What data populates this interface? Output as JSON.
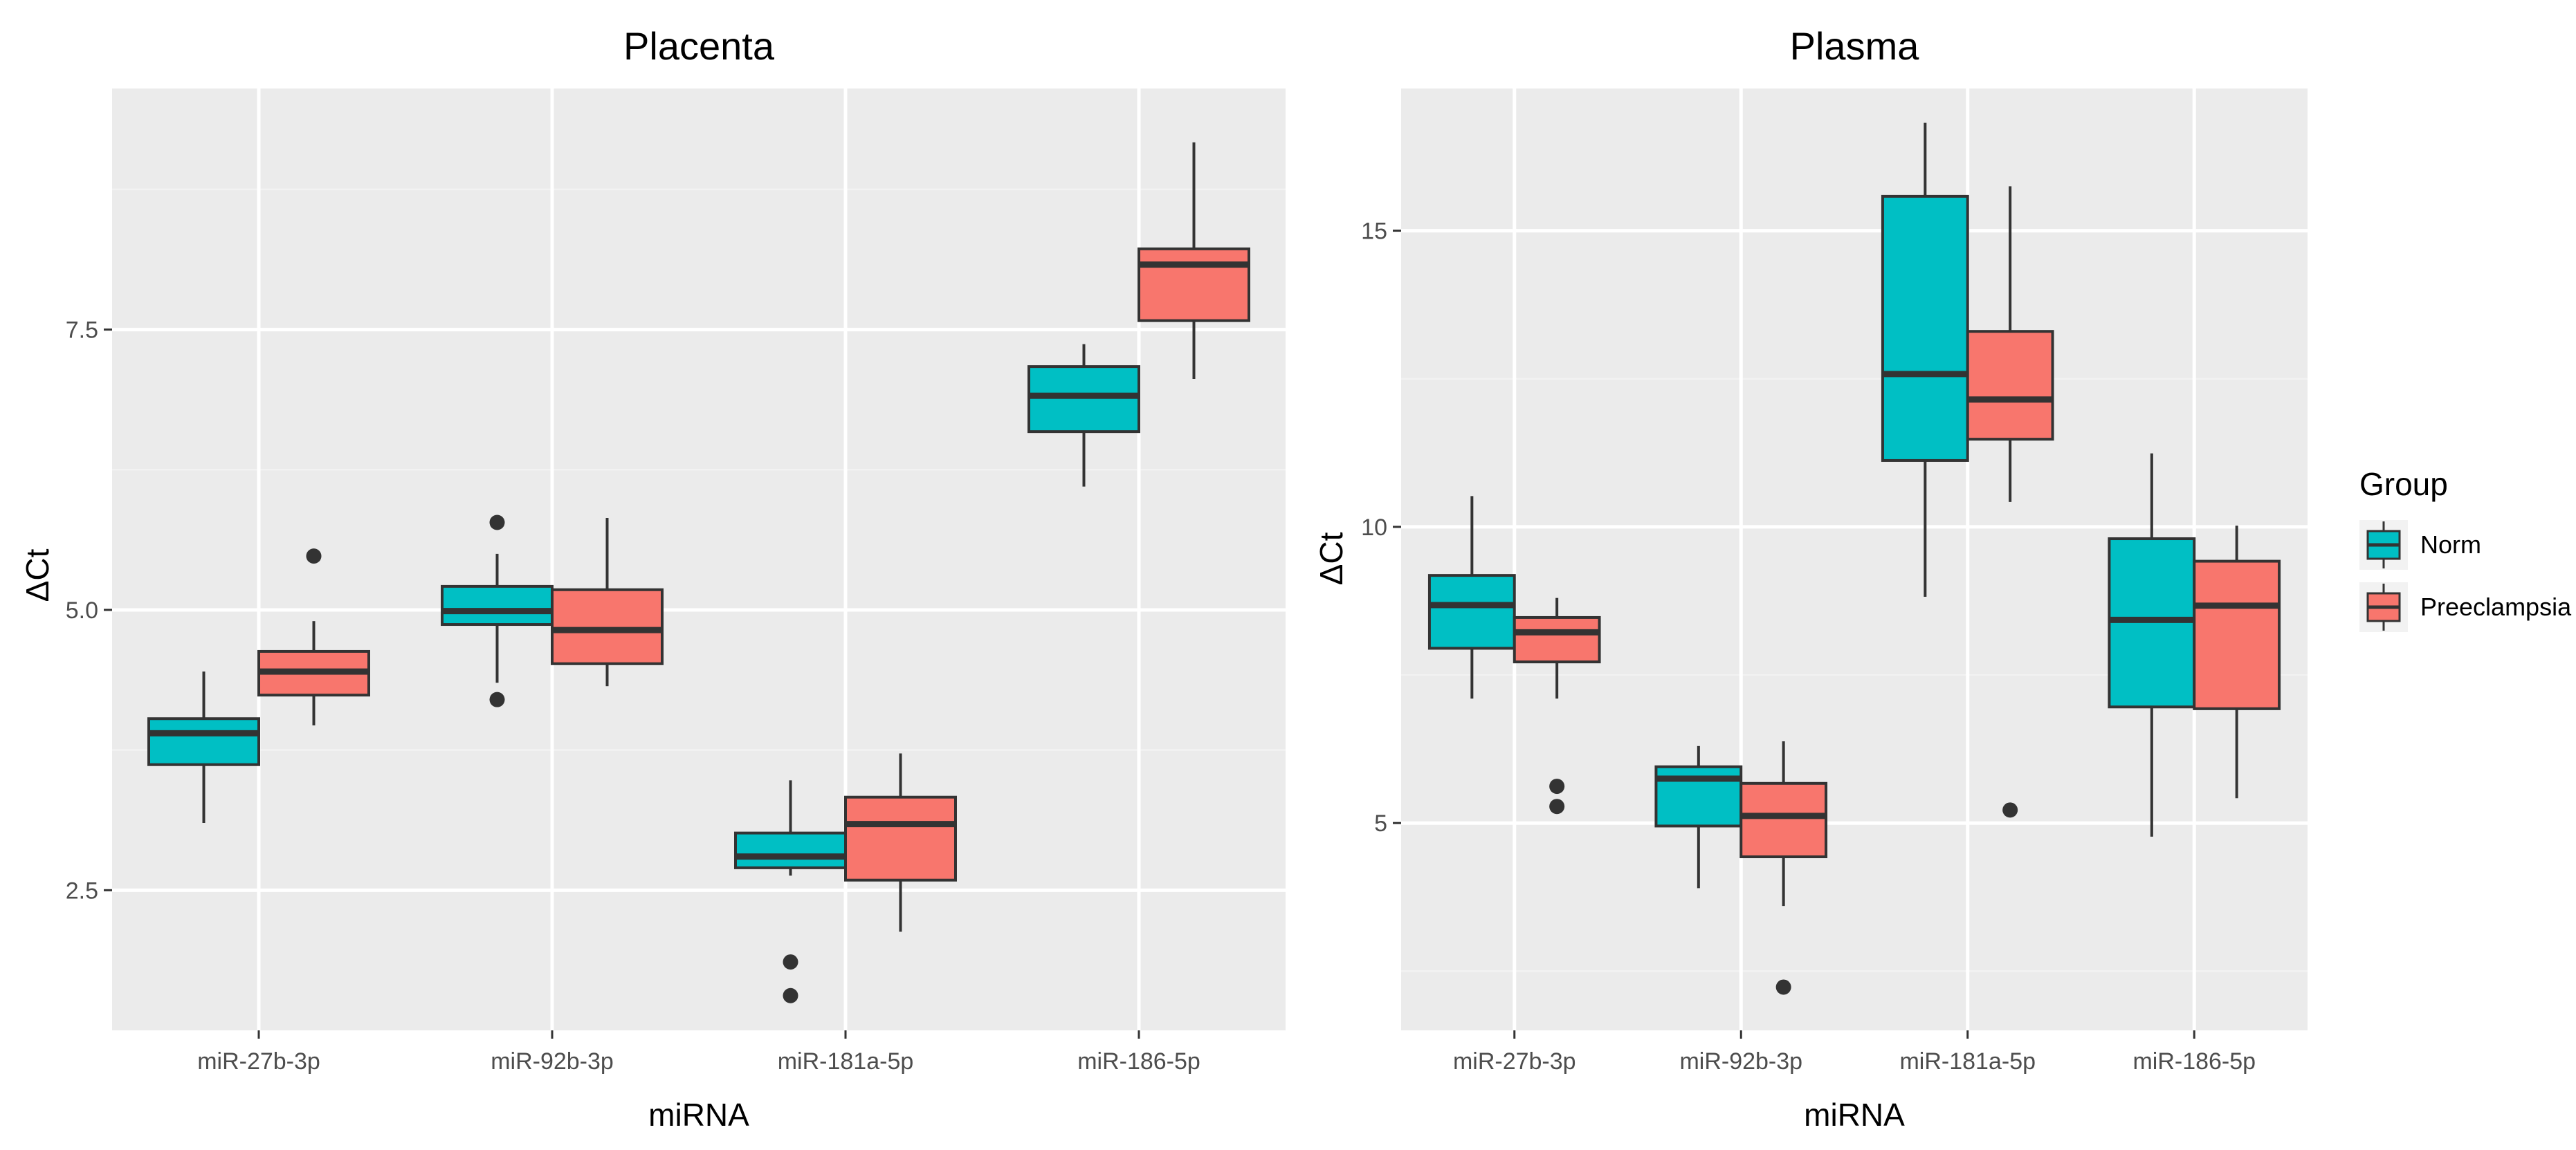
{
  "chart_data": [
    {
      "type": "boxplot",
      "title": "Placenta",
      "xlabel": "miRNA",
      "ylabel": "ΔCt",
      "categories": [
        "miR-27b-3p",
        "miR-92b-3p",
        "miR-181a-5p",
        "miR-186-5p"
      ],
      "yticks": [
        2.5,
        5.0,
        7.5
      ],
      "ytick_labels": [
        "2.5",
        "5.0",
        "7.5"
      ],
      "ylim": [
        1.25,
        9.65
      ],
      "grid": true,
      "series": [
        {
          "name": "Norm",
          "color": "#00bfc4",
          "boxes": [
            {
              "lower_whisker": 3.1,
              "q1": 3.62,
              "median": 3.9,
              "q3": 4.03,
              "upper_whisker": 4.45,
              "outliers": []
            },
            {
              "lower_whisker": 4.35,
              "q1": 4.87,
              "median": 4.99,
              "q3": 5.21,
              "upper_whisker": 5.5,
              "outliers": [
                5.78,
                4.2
              ]
            },
            {
              "lower_whisker": 2.63,
              "q1": 2.7,
              "median": 2.8,
              "q3": 3.01,
              "upper_whisker": 3.48,
              "outliers": [
                1.86,
                1.56
              ]
            },
            {
              "lower_whisker": 6.1,
              "q1": 6.59,
              "median": 6.91,
              "q3": 7.17,
              "upper_whisker": 7.37,
              "outliers": []
            }
          ]
        },
        {
          "name": "Preeclampsia",
          "color": "#f8766d",
          "boxes": [
            {
              "lower_whisker": 3.97,
              "q1": 4.24,
              "median": 4.45,
              "q3": 4.63,
              "upper_whisker": 4.9,
              "outliers": [
                5.48
              ]
            },
            {
              "lower_whisker": 4.32,
              "q1": 4.52,
              "median": 4.82,
              "q3": 5.18,
              "upper_whisker": 5.82,
              "outliers": []
            },
            {
              "lower_whisker": 2.13,
              "q1": 2.59,
              "median": 3.09,
              "q3": 3.33,
              "upper_whisker": 3.72,
              "outliers": []
            },
            {
              "lower_whisker": 7.06,
              "q1": 7.58,
              "median": 8.08,
              "q3": 8.22,
              "upper_whisker": 9.17,
              "outliers": []
            }
          ]
        }
      ]
    },
    {
      "type": "boxplot",
      "title": "Plasma",
      "xlabel": "miRNA",
      "ylabel": "ΔCt",
      "categories": [
        "miR-27b-3p",
        "miR-92b-3p",
        "miR-181a-5p",
        "miR-186-5p"
      ],
      "yticks": [
        5,
        10,
        15
      ],
      "ytick_labels": [
        "5",
        "10",
        "15"
      ],
      "ylim": [
        1.5,
        17.4
      ],
      "grid": true,
      "series": [
        {
          "name": "Norm",
          "color": "#00bfc4",
          "boxes": [
            {
              "lower_whisker": 7.1,
              "q1": 7.95,
              "median": 8.68,
              "q3": 9.18,
              "upper_whisker": 10.52,
              "outliers": []
            },
            {
              "lower_whisker": 3.9,
              "q1": 4.95,
              "median": 5.75,
              "q3": 5.95,
              "upper_whisker": 6.3,
              "outliers": []
            },
            {
              "lower_whisker": 8.82,
              "q1": 11.12,
              "median": 12.58,
              "q3": 15.58,
              "upper_whisker": 16.82,
              "outliers": []
            },
            {
              "lower_whisker": 4.77,
              "q1": 6.96,
              "median": 8.43,
              "q3": 9.8,
              "upper_whisker": 11.24,
              "outliers": []
            }
          ]
        },
        {
          "name": "Preeclampsia",
          "color": "#f8766d",
          "boxes": [
            {
              "lower_whisker": 7.1,
              "q1": 7.72,
              "median": 8.22,
              "q3": 8.47,
              "upper_whisker": 8.8,
              "outliers": [
                5.62,
                5.28
              ]
            },
            {
              "lower_whisker": 3.6,
              "q1": 4.43,
              "median": 5.12,
              "q3": 5.67,
              "upper_whisker": 6.38,
              "outliers": [
                2.23
              ]
            },
            {
              "lower_whisker": 10.42,
              "q1": 11.48,
              "median": 12.15,
              "q3": 13.3,
              "upper_whisker": 15.75,
              "outliers": [
                5.22
              ]
            },
            {
              "lower_whisker": 5.42,
              "q1": 6.93,
              "median": 8.67,
              "q3": 9.42,
              "upper_whisker": 10.02,
              "outliers": []
            }
          ]
        }
      ]
    }
  ],
  "legend": {
    "title": "Group",
    "items": [
      {
        "label": "Norm",
        "color": "#00bfc4"
      },
      {
        "label": "Preeclampsia",
        "color": "#f8766d"
      }
    ]
  },
  "colors": {
    "panel_background": "#ebebeb",
    "grid_major": "#ffffff",
    "grid_minor": "#f2f2f2",
    "box_line": "#333333",
    "tick": "#333333"
  }
}
